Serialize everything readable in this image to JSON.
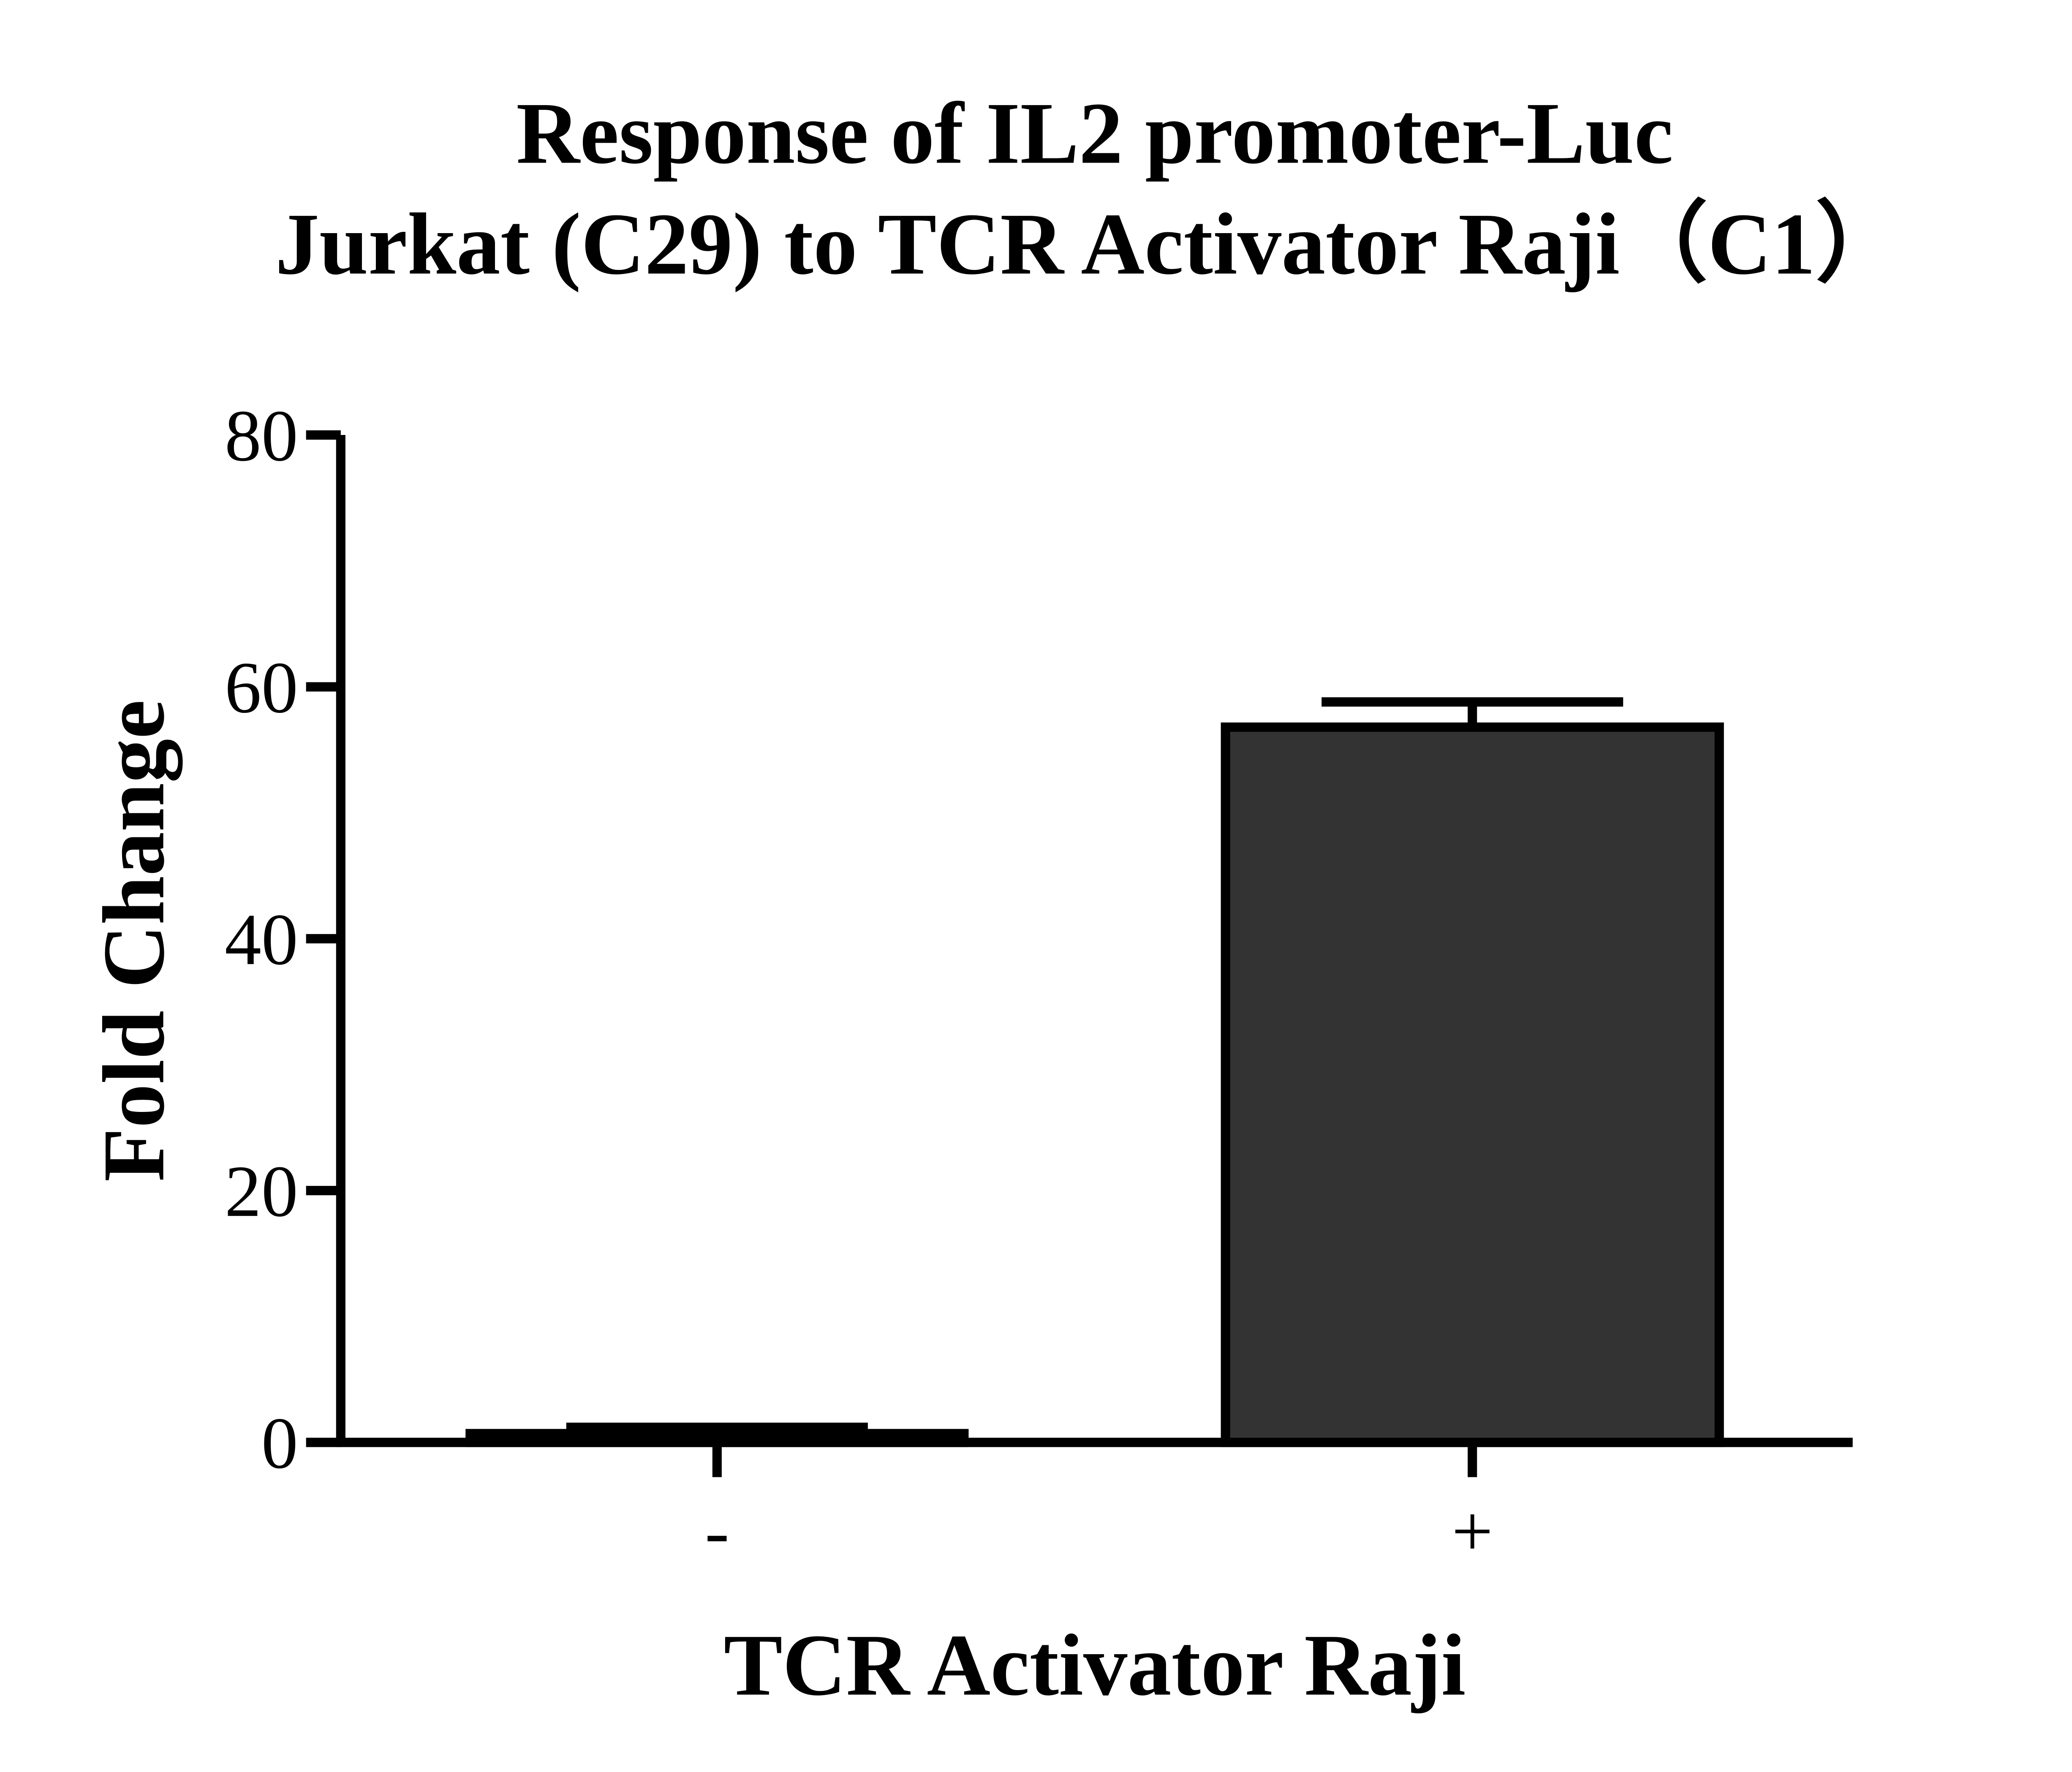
{
  "chart_data": {
    "type": "bar",
    "title": [
      "Response of  IL2 promoter-Luc",
      "Jurkat (C29)  to TCR Activator Raji（C1）"
    ],
    "xlabel": "TCR Activator Raji",
    "ylabel": "Fold Change",
    "categories": [
      "-",
      "+"
    ],
    "values": [
      0.7,
      56.8
    ],
    "errors": [
      0.5,
      2.0
    ],
    "ylim": [
      0,
      80
    ],
    "yticks": [
      "0",
      "20",
      "40",
      "60",
      "80"
    ],
    "grid": false,
    "colors": {
      "bar_fill": [
        "#000000",
        "#333333"
      ],
      "bar_edge": "#000000"
    }
  }
}
